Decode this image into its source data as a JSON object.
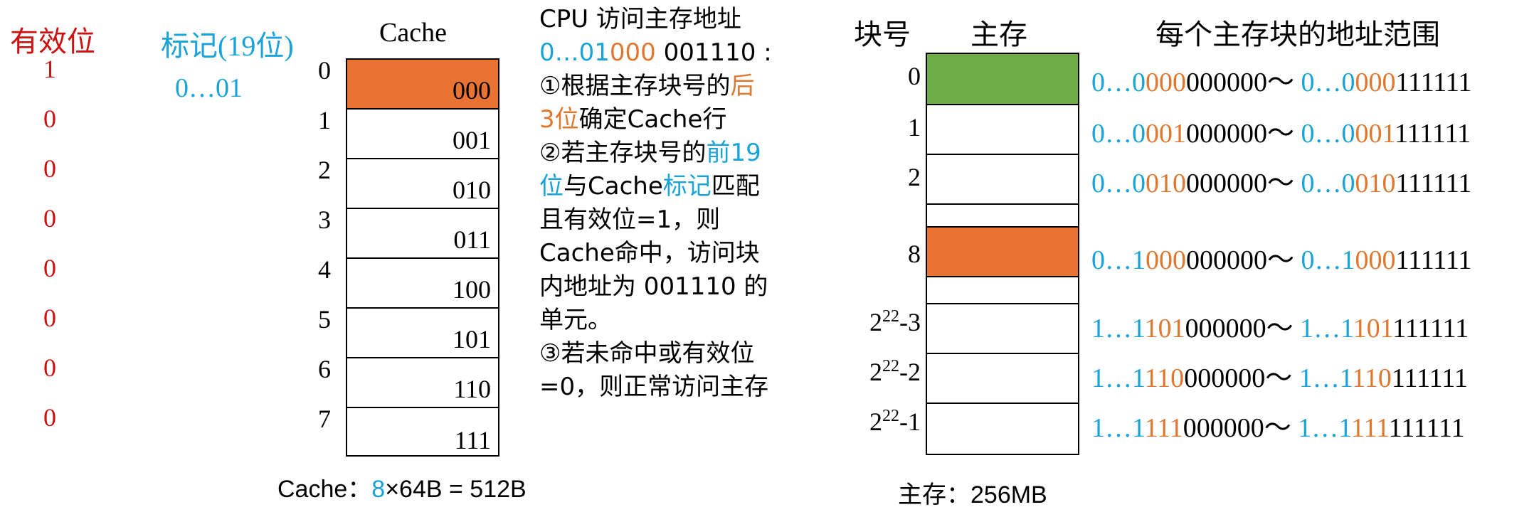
{
  "headers": {
    "valid": "有效位",
    "tag": "标记(19位)",
    "cache": "Cache",
    "block_no": "块号",
    "main_mem": "主存",
    "addr_range": "每个主存块的地址范围"
  },
  "valid_bits": [
    "1",
    "0",
    "0",
    "0",
    "0",
    "0",
    "0",
    "0"
  ],
  "tag_value": "0…01",
  "cache_lines": [
    {
      "index": "0",
      "value": "000"
    },
    {
      "index": "1",
      "value": "001"
    },
    {
      "index": "2",
      "value": "010"
    },
    {
      "index": "3",
      "value": "011"
    },
    {
      "index": "4",
      "value": "100"
    },
    {
      "index": "5",
      "value": "101"
    },
    {
      "index": "6",
      "value": "110"
    },
    {
      "index": "7",
      "value": "111"
    }
  ],
  "cache_size": {
    "label": "Cache：",
    "lines": "8",
    "rest": "×64B = 512B"
  },
  "description": {
    "title": "CPU 访问主存地址",
    "addr_blue": "0…01",
    "addr_orange": "000",
    "addr_offset": " 001110 :",
    "s1_a": "①根据主存块号的",
    "s1_b": "后",
    "s1_c": "3位",
    "s1_d": "确定Cache行",
    "s2_a": "②若主存块号的",
    "s2_b": "前19",
    "s2_c": "位",
    "s2_d": "与Cache",
    "s2_e": "标记",
    "s2_f": "匹配",
    "s2_g": "且有效位=1，则",
    "s2_h": "Cache命中，访问块",
    "s2_i": "内地址为 001110 的",
    "s2_j": "单元。",
    "s3_a": "③若未命中或有效位",
    "s3_b": "=0，则正常访问主存"
  },
  "memory_blocks": [
    {
      "label": "0",
      "range": {
        "s_blue": "0…0",
        "s_orange": "000",
        "s_black": "000000",
        "sep": "～ ",
        "e_blue": "0…0",
        "e_orange": "000",
        "e_black": "111111"
      }
    },
    {
      "label": "1",
      "range": {
        "s_blue": "0…0",
        "s_orange": "001",
        "s_black": "000000",
        "sep": "～ ",
        "e_blue": "0…0",
        "e_orange": "001",
        "e_black": "111111"
      }
    },
    {
      "label": "2",
      "range": {
        "s_blue": "0…0",
        "s_orange": "010",
        "s_black": "000000",
        "sep": "～ ",
        "e_blue": "0…0",
        "e_orange": "010",
        "e_black": "111111"
      }
    },
    {
      "label": "8",
      "range": {
        "s_blue": "0…1",
        "s_orange": "000",
        "s_black": "000000",
        "sep": "～ ",
        "e_blue": "0…1",
        "e_orange": "000",
        "e_black": "111111"
      }
    },
    {
      "label_base": "2",
      "label_exp": "22",
      "label_suffix": "-3",
      "range": {
        "s_blue": "1…1",
        "s_orange": "101",
        "s_black": "000000",
        "sep": "～ ",
        "e_blue": "1…1",
        "e_orange": "101",
        "e_black": "111111"
      }
    },
    {
      "label_base": "2",
      "label_exp": "22",
      "label_suffix": "-2",
      "range": {
        "s_blue": "1…1",
        "s_orange": "110",
        "s_black": "000000",
        "sep": "～ ",
        "e_blue": "1…1",
        "e_orange": "110",
        "e_black": "111111"
      }
    },
    {
      "label_base": "2",
      "label_exp": "22",
      "label_suffix": "-1",
      "range": {
        "s_blue": "1…1",
        "s_orange": "111",
        "s_black": "000000",
        "sep": "～ ",
        "e_blue": "1…1",
        "e_orange": "111",
        "e_black": "111111"
      }
    }
  ],
  "mem_size": {
    "label": "主存：",
    "value": "256MB"
  },
  "colors": {
    "red": "#cc1111",
    "blue": "#1aa3d8",
    "orange": "#e0772e",
    "hit_fill": "#e87333",
    "green_fill": "#70ad47"
  }
}
